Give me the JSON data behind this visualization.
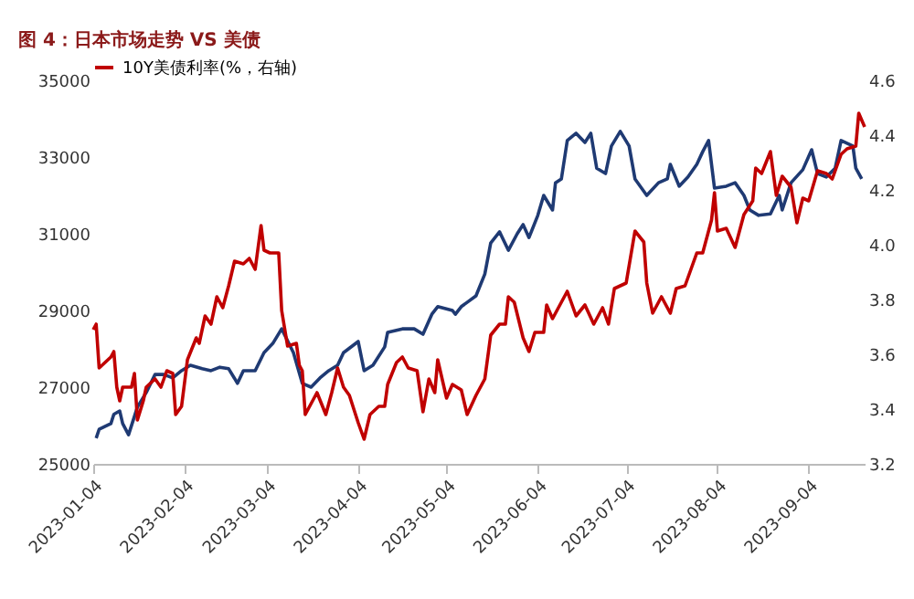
{
  "chart_data": {
    "type": "line",
    "title": "图 4：日本市场走势 VS 美债",
    "xlim": [
      "2023-01-04",
      "2023-09-23"
    ],
    "xticks": [
      "2023-01-04",
      "2023-02-04",
      "2023-03-04",
      "2023-04-04",
      "2023-05-04",
      "2023-06-04",
      "2023-07-04",
      "2023-08-04",
      "2023-09-04"
    ],
    "ylim": [
      25000,
      35000
    ],
    "yticks": [
      25000,
      27000,
      29000,
      31000,
      33000,
      35000
    ],
    "y2lim": [
      3.2,
      4.6
    ],
    "y2ticks": [
      3.2,
      3.4,
      3.6,
      3.8,
      {
        "value": 4,
        "label": "4.0"
      },
      4.2,
      4.4,
      4.6
    ],
    "grid": false,
    "legend": "top",
    "marker": "none",
    "line_style": "solid",
    "series": [
      {
        "color": "#1f3a73",
        "x": [
          "2023-01-05",
          "2023-01-06",
          "2023-01-10",
          "2023-01-11",
          "2023-01-13",
          "2023-01-14",
          "2023-01-16",
          "2023-01-19",
          "2023-01-22",
          "2023-01-25",
          "2023-01-28",
          "2023-01-31",
          "2023-02-03",
          "2023-02-06",
          "2023-02-10",
          "2023-02-13",
          "2023-02-16",
          "2023-02-19",
          "2023-02-22",
          "2023-02-24",
          "2023-02-28",
          "2023-03-03",
          "2023-03-06",
          "2023-03-09",
          "2023-03-13",
          "2023-03-16",
          "2023-03-19",
          "2023-03-22",
          "2023-03-25",
          "2023-03-28",
          "2023-03-30",
          "2023-04-04",
          "2023-04-06",
          "2023-04-09",
          "2023-04-13",
          "2023-04-14",
          "2023-04-19",
          "2023-04-23",
          "2023-04-26",
          "2023-04-29",
          "2023-05-01",
          "2023-05-06",
          "2023-05-07",
          "2023-05-09",
          "2023-05-14",
          "2023-05-17",
          "2023-05-19",
          "2023-05-22",
          "2023-05-25",
          "2023-05-28",
          "2023-05-30",
          "2023-06-01",
          "2023-06-04",
          "2023-06-06",
          "2023-06-09",
          "2023-06-10",
          "2023-06-12",
          "2023-06-14",
          "2023-06-17",
          "2023-06-20",
          "2023-06-22",
          "2023-06-24",
          "2023-06-27",
          "2023-06-29",
          "2023-07-02",
          "2023-07-05",
          "2023-07-07",
          "2023-07-11",
          "2023-07-15",
          "2023-07-18",
          "2023-07-19",
          "2023-07-22",
          "2023-07-25",
          "2023-07-28",
          "2023-07-30",
          "2023-08-01",
          "2023-08-03",
          "2023-08-07",
          "2023-08-10",
          "2023-08-13",
          "2023-08-15",
          "2023-08-18",
          "2023-08-22",
          "2023-08-25",
          "2023-08-26",
          "2023-08-29",
          "2023-09-02",
          "2023-09-05",
          "2023-09-07",
          "2023-09-10",
          "2023-09-13",
          "2023-09-15",
          "2023-09-19",
          "2023-09-20",
          "2023-09-22"
        ],
        "values": [
          25670,
          25900,
          26050,
          26290,
          26380,
          26050,
          25760,
          26480,
          26860,
          27330,
          27330,
          27240,
          27430,
          27570,
          27480,
          27430,
          27520,
          27480,
          27100,
          27430,
          27430,
          27900,
          28140,
          28520,
          27900,
          27100,
          27000,
          27240,
          27430,
          27570,
          27900,
          28190,
          27430,
          27570,
          28050,
          28430,
          28520,
          28520,
          28380,
          28900,
          29100,
          29000,
          28900,
          29100,
          29380,
          29950,
          30760,
          31050,
          30570,
          31000,
          31240,
          30900,
          31480,
          32000,
          31620,
          32330,
          32430,
          33430,
          33620,
          33380,
          33620,
          32710,
          32570,
          33290,
          33670,
          33290,
          32430,
          32000,
          32330,
          32430,
          32810,
          32240,
          32480,
          32810,
          33140,
          33430,
          32190,
          32240,
          32330,
          32000,
          31620,
          31480,
          31520,
          32000,
          31620,
          32330,
          32670,
          33190,
          32570,
          32480,
          32710,
          33430,
          33290,
          32710,
          32430
        ]
      },
      {
        "name": "10Y美债利率(%，右轴)",
        "color": "#c00000",
        "axis": "y2",
        "x": [
          "2023-01-04",
          "2023-01-05",
          "2023-01-06",
          "2023-01-10",
          "2023-01-11",
          "2023-01-12",
          "2023-01-13",
          "2023-01-14",
          "2023-01-17",
          "2023-01-18",
          "2023-01-19",
          "2023-01-21",
          "2023-01-22",
          "2023-01-25",
          "2023-01-27",
          "2023-01-29",
          "2023-01-31",
          "2023-02-01",
          "2023-02-03",
          "2023-02-05",
          "2023-02-08",
          "2023-02-09",
          "2023-02-11",
          "2023-02-13",
          "2023-02-15",
          "2023-02-17",
          "2023-02-19",
          "2023-02-21",
          "2023-02-24",
          "2023-02-26",
          "2023-02-28",
          "2023-03-02",
          "2023-03-03",
          "2023-03-05",
          "2023-03-08",
          "2023-03-09",
          "2023-03-11",
          "2023-03-14",
          "2023-03-15",
          "2023-03-16",
          "2023-03-17",
          "2023-03-21",
          "2023-03-24",
          "2023-03-26",
          "2023-03-28",
          "2023-03-30",
          "2023-04-01",
          "2023-04-04",
          "2023-04-06",
          "2023-04-08",
          "2023-04-11",
          "2023-04-13",
          "2023-04-14",
          "2023-04-17",
          "2023-04-19",
          "2023-04-21",
          "2023-04-24",
          "2023-04-26",
          "2023-04-28",
          "2023-04-30",
          "2023-05-01",
          "2023-05-04",
          "2023-05-06",
          "2023-05-09",
          "2023-05-11",
          "2023-05-14",
          "2023-05-17",
          "2023-05-19",
          "2023-05-22",
          "2023-05-24",
          "2023-05-25",
          "2023-05-27",
          "2023-05-30",
          "2023-06-01",
          "2023-06-03",
          "2023-06-06",
          "2023-06-07",
          "2023-06-09",
          "2023-06-14",
          "2023-06-17",
          "2023-06-20",
          "2023-06-23",
          "2023-06-26",
          "2023-06-28",
          "2023-06-30",
          "2023-07-04",
          "2023-07-07",
          "2023-07-10",
          "2023-07-11",
          "2023-07-13",
          "2023-07-16",
          "2023-07-19",
          "2023-07-21",
          "2023-07-24",
          "2023-07-26",
          "2023-07-28",
          "2023-07-30",
          "2023-08-02",
          "2023-08-03",
          "2023-08-04",
          "2023-08-07",
          "2023-08-10",
          "2023-08-13",
          "2023-08-16",
          "2023-08-17",
          "2023-08-19",
          "2023-08-22",
          "2023-08-24",
          "2023-08-26",
          "2023-08-29",
          "2023-08-31",
          "2023-09-02",
          "2023-09-04",
          "2023-09-07",
          "2023-09-10",
          "2023-09-12",
          "2023-09-15",
          "2023-09-17",
          "2023-09-20",
          "2023-09-21",
          "2023-09-23"
        ],
        "values": [
          3.69,
          3.71,
          3.55,
          3.59,
          3.61,
          3.48,
          3.43,
          3.48,
          3.48,
          3.53,
          3.36,
          3.43,
          3.48,
          3.51,
          3.48,
          3.54,
          3.53,
          3.38,
          3.41,
          3.58,
          3.66,
          3.64,
          3.74,
          3.71,
          3.81,
          3.77,
          3.85,
          3.94,
          3.93,
          3.95,
          3.91,
          4.07,
          3.98,
          3.97,
          3.97,
          3.76,
          3.63,
          3.64,
          3.56,
          3.54,
          3.38,
          3.46,
          3.38,
          3.46,
          3.55,
          3.48,
          3.45,
          3.35,
          3.29,
          3.38,
          3.41,
          3.41,
          3.49,
          3.57,
          3.59,
          3.55,
          3.54,
          3.39,
          3.51,
          3.46,
          3.58,
          3.44,
          3.49,
          3.47,
          3.38,
          3.45,
          3.51,
          3.67,
          3.71,
          3.71,
          3.81,
          3.79,
          3.66,
          3.61,
          3.68,
          3.68,
          3.78,
          3.73,
          3.83,
          3.74,
          3.78,
          3.71,
          3.77,
          3.71,
          3.84,
          3.86,
          4.05,
          4.01,
          3.86,
          3.75,
          3.81,
          3.75,
          3.84,
          3.85,
          3.91,
          3.97,
          3.97,
          4.09,
          4.19,
          4.05,
          4.06,
          3.99,
          4.11,
          4.16,
          4.28,
          4.26,
          4.34,
          4.18,
          4.25,
          4.21,
          4.08,
          4.17,
          4.16,
          4.27,
          4.26,
          4.24,
          4.33,
          4.35,
          4.36,
          4.48,
          4.43
        ]
      }
    ]
  }
}
